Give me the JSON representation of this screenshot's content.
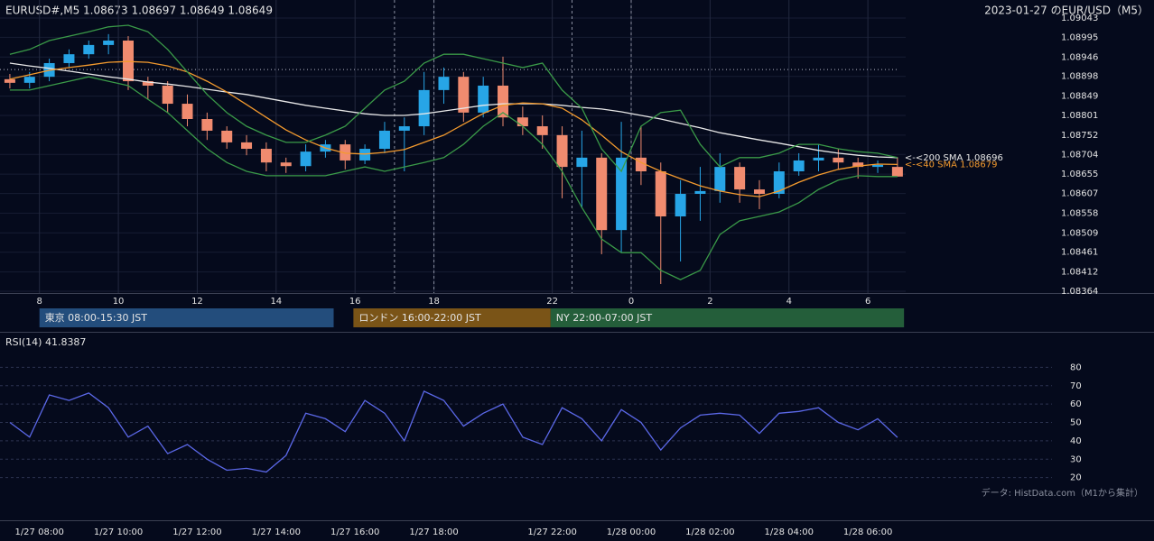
{
  "chart_data": [
    {
      "type": "candlestick",
      "title": "EURUSD#,M5 1.08673 1.08697 1.08649 1.08649",
      "subtitle": "2023-01-27 のEUR/USD（M5）",
      "x": [
        3,
        9,
        15,
        21,
        27,
        33,
        39,
        45,
        51,
        57,
        63,
        69,
        75,
        81,
        87,
        93,
        99,
        105,
        111,
        117,
        123,
        129,
        135,
        141,
        147,
        153,
        159,
        165,
        171,
        177,
        183,
        189,
        195,
        201,
        207,
        213,
        219,
        225,
        231,
        237,
        243,
        249,
        255,
        261,
        267,
        273
      ],
      "open": [
        1.08891,
        1.08882,
        1.08897,
        1.08931,
        1.08953,
        1.08976,
        1.08987,
        1.08886,
        1.08875,
        1.0883,
        1.08792,
        1.08763,
        1.08734,
        1.08718,
        1.08684,
        1.08675,
        1.08711,
        1.08729,
        1.08689,
        1.08718,
        1.08763,
        1.08774,
        1.08864,
        1.08897,
        1.08808,
        1.08875,
        1.08796,
        1.08774,
        1.08752,
        1.08673,
        1.08696,
        1.08516,
        1.08696,
        1.08662,
        1.0855,
        1.08606,
        1.08613,
        1.08673,
        1.08617,
        1.08606,
        1.08662,
        1.08689,
        1.08696,
        1.08684,
        1.08673,
        1.08673
      ],
      "high": [
        1.08904,
        1.08909,
        1.08942,
        1.08965,
        1.08987,
        1.09003,
        1.08998,
        1.08897,
        1.08886,
        1.08853,
        1.08808,
        1.08774,
        1.08752,
        1.08734,
        1.08696,
        1.08729,
        1.0874,
        1.0874,
        1.08729,
        1.08785,
        1.08796,
        1.08909,
        1.0892,
        1.08909,
        1.08897,
        1.08947,
        1.08823,
        1.08801,
        1.08774,
        1.08763,
        1.08707,
        1.08785,
        1.08774,
        1.08684,
        1.0864,
        1.08673,
        1.08707,
        1.08684,
        1.0864,
        1.08684,
        1.08707,
        1.08729,
        1.08718,
        1.08696,
        1.08689,
        1.08697
      ],
      "low": [
        1.08868,
        1.08868,
        1.08886,
        1.0892,
        1.08942,
        1.08953,
        1.08864,
        1.08841,
        1.08808,
        1.08774,
        1.0874,
        1.08718,
        1.08702,
        1.08662,
        1.08658,
        1.08662,
        1.08696,
        1.08667,
        1.0868,
        1.08707,
        1.08662,
        1.08752,
        1.0883,
        1.08785,
        1.08796,
        1.08774,
        1.08752,
        1.08718,
        1.08595,
        1.08572,
        1.08456,
        1.0846,
        1.08628,
        1.08382,
        1.08438,
        1.08539,
        1.08584,
        1.08584,
        1.08568,
        1.08595,
        1.08651,
        1.08662,
        1.08667,
        1.08644,
        1.08658,
        1.08649
      ],
      "close": [
        1.08882,
        1.08897,
        1.08931,
        1.08953,
        1.08976,
        1.08987,
        1.08886,
        1.08875,
        1.0883,
        1.08792,
        1.08763,
        1.08734,
        1.08718,
        1.08684,
        1.08675,
        1.08711,
        1.08729,
        1.08689,
        1.08718,
        1.08763,
        1.08774,
        1.08864,
        1.08897,
        1.08808,
        1.08875,
        1.08796,
        1.08774,
        1.08752,
        1.08673,
        1.08696,
        1.08516,
        1.08696,
        1.08662,
        1.0855,
        1.08606,
        1.08613,
        1.08673,
        1.08617,
        1.08606,
        1.08662,
        1.08689,
        1.08696,
        1.08684,
        1.08673,
        1.08678,
        1.08649
      ],
      "up_color": "#27a5e6",
      "down_color": "#f08b6f",
      "series": [
        {
          "name": "<-<200 SMA 1.08696",
          "color": "#e8e8e8",
          "values": [
            1.08931,
            1.08924,
            1.08918,
            1.08911,
            1.08904,
            1.08897,
            1.08891,
            1.08884,
            1.08879,
            1.08873,
            1.08866,
            1.08859,
            1.08853,
            1.08844,
            1.08835,
            1.08826,
            1.08819,
            1.08812,
            1.08805,
            1.08801,
            1.08801,
            1.08805,
            1.08812,
            1.08819,
            1.08826,
            1.0883,
            1.0883,
            1.0883,
            1.08826,
            1.08821,
            1.08817,
            1.0881,
            1.08801,
            1.08792,
            1.08781,
            1.0877,
            1.08758,
            1.08749,
            1.0874,
            1.08732,
            1.08723,
            1.08714,
            1.08707,
            1.08702,
            1.08698,
            1.08696
          ]
        },
        {
          "name": "<-<40 SMA 1.08679",
          "color": "#f39a2e",
          "values": [
            1.08891,
            1.08902,
            1.08913,
            1.0892,
            1.08926,
            1.08933,
            1.08935,
            1.08933,
            1.08924,
            1.08909,
            1.08886,
            1.08859,
            1.08828,
            1.08796,
            1.08765,
            1.0874,
            1.0872,
            1.08707,
            1.08705,
            1.08709,
            1.08716,
            1.08734,
            1.08752,
            1.08779,
            1.08806,
            1.08826,
            1.08832,
            1.0883,
            1.08819,
            1.0879,
            1.08752,
            1.08711,
            1.08684,
            1.08662,
            1.08644,
            1.08626,
            1.08613,
            1.08604,
            1.08599,
            1.08613,
            1.08635,
            1.08653,
            1.08667,
            1.08675,
            1.0868,
            1.08679
          ]
        },
        {
          "color": "#3a9a48",
          "values": [
            1.08953,
            1.08965,
            1.08987,
            1.08998,
            1.09009,
            1.09021,
            1.09025,
            1.09009,
            1.08965,
            1.08909,
            1.08853,
            1.08808,
            1.08774,
            1.08752,
            1.08734,
            1.08734,
            1.08752,
            1.08774,
            1.08819,
            1.08864,
            1.08886,
            1.08931,
            1.08953,
            1.08953,
            1.08942,
            1.08931,
            1.0892,
            1.08931,
            1.08864,
            1.08819,
            1.08718,
            1.08662,
            1.08774,
            1.08808,
            1.08814,
            1.08729,
            1.08673,
            1.08696,
            1.08696,
            1.08707,
            1.08729,
            1.08729,
            1.08718,
            1.08711,
            1.08707,
            1.08696
          ]
        },
        {
          "color": "#3a9a48",
          "values": [
            1.08864,
            1.08864,
            1.08875,
            1.08886,
            1.08897,
            1.08886,
            1.08875,
            1.08841,
            1.08808,
            1.08763,
            1.08718,
            1.08684,
            1.08662,
            1.08651,
            1.08651,
            1.08651,
            1.08651,
            1.08662,
            1.08673,
            1.08662,
            1.08673,
            1.08684,
            1.08696,
            1.08729,
            1.08774,
            1.08808,
            1.08774,
            1.08729,
            1.08662,
            1.08572,
            1.08494,
            1.0846,
            1.0846,
            1.08416,
            1.08393,
            1.08416,
            1.08505,
            1.08539,
            1.0855,
            1.08561,
            1.08584,
            1.08617,
            1.0864,
            1.08651,
            1.08649,
            1.08649
          ]
        }
      ],
      "xlim": [
        0,
        320
      ],
      "xticks": [
        {
          "value": 12,
          "label": "8"
        },
        {
          "value": 36,
          "label": "10"
        },
        {
          "value": 60,
          "label": "12"
        },
        {
          "value": 84,
          "label": "14"
        },
        {
          "value": 108,
          "label": "16"
        },
        {
          "value": 132,
          "label": "18"
        },
        {
          "value": 168,
          "label": "22"
        },
        {
          "value": 192,
          "label": "0"
        },
        {
          "value": 216,
          "label": "2"
        },
        {
          "value": 240,
          "label": "4"
        },
        {
          "value": 264,
          "label": "6"
        }
      ],
      "ylim": [
        1.08364,
        1.09043
      ],
      "yticks": [
        1.09043,
        1.08995,
        1.08946,
        1.08898,
        1.08849,
        1.08801,
        1.08752,
        1.08704,
        1.08655,
        1.08607,
        1.08558,
        1.08509,
        1.08461,
        1.08412,
        1.08364
      ],
      "grid": true,
      "reference_line": 1.08915,
      "vlines": [
        120,
        132,
        174,
        192
      ],
      "sessions": [
        {
          "label": "東京 08:00-15:30 JST",
          "start": 12,
          "end": 101.5,
          "color": "#234d7c"
        },
        {
          "label": "ロンドン 16:00-22:00 JST",
          "start": 107.5,
          "end": 167.5,
          "color": "#7a5417"
        },
        {
          "label": "NY 22:00-07:00 JST",
          "start": 167.5,
          "end": 275,
          "color": "#245e3a"
        }
      ]
    },
    {
      "type": "line",
      "title": "RSI(14) 41.8387",
      "x": [
        3,
        9,
        15,
        21,
        27,
        33,
        39,
        45,
        51,
        57,
        63,
        69,
        75,
        81,
        87,
        93,
        99,
        105,
        111,
        117,
        123,
        129,
        135,
        141,
        147,
        153,
        159,
        165,
        171,
        177,
        183,
        189,
        195,
        201,
        207,
        213,
        219,
        225,
        231,
        237,
        243,
        249,
        255,
        261,
        267,
        273
      ],
      "series": [
        {
          "color": "#5b68e8",
          "values": [
            50,
            42,
            65,
            62,
            66,
            58,
            42,
            48,
            33,
            38,
            30,
            24,
            25,
            23,
            32,
            55,
            52,
            45,
            62,
            55,
            40,
            67,
            62,
            48,
            55,
            60,
            42,
            38,
            58,
            52,
            40,
            57,
            50,
            35,
            47,
            54,
            55,
            54,
            44,
            55,
            56,
            58,
            50,
            46,
            52,
            41.84
          ]
        }
      ],
      "xlim": [
        0,
        320
      ],
      "xticks": [
        {
          "value": 12,
          "label": "1/27 08:00"
        },
        {
          "value": 36,
          "label": "1/27 10:00"
        },
        {
          "value": 60,
          "label": "1/27 12:00"
        },
        {
          "value": 84,
          "label": "1/27 14:00"
        },
        {
          "value": 108,
          "label": "1/27 16:00"
        },
        {
          "value": 132,
          "label": "1/27 18:00"
        },
        {
          "value": 168,
          "label": "1/27 22:00"
        },
        {
          "value": 192,
          "label": "1/28 00:00"
        },
        {
          "value": 216,
          "label": "1/28 02:00"
        },
        {
          "value": 240,
          "label": "1/28 04:00"
        },
        {
          "value": 264,
          "label": "1/28 06:00"
        }
      ],
      "ylim": [
        10,
        91
      ],
      "yticks": [
        80,
        70,
        60,
        50,
        40,
        30,
        20
      ],
      "grid": true,
      "grid_dashed": true,
      "annotation": "データ: HistData.com（M1から集計）"
    }
  ]
}
